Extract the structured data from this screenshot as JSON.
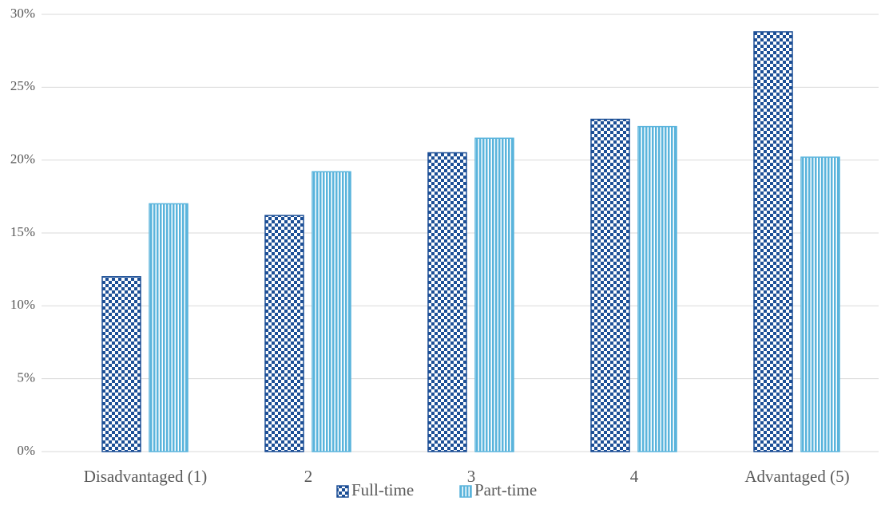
{
  "chart_data": {
    "type": "bar",
    "categories": [
      "Disadvantaged (1)",
      "2",
      "3",
      "4",
      "Advantaged (5)"
    ],
    "series": [
      {
        "name": "Full-time",
        "color": "#1c4f96",
        "values": [
          12.0,
          16.2,
          20.5,
          22.8,
          28.8
        ]
      },
      {
        "name": "Part-time",
        "color": "#5ab4dc",
        "values": [
          17.0,
          19.2,
          21.5,
          22.3,
          20.2
        ]
      }
    ],
    "ylim": [
      0,
      30
    ],
    "yticks": [
      {
        "value": 0,
        "label": "0%"
      },
      {
        "value": 5,
        "label": "5%"
      },
      {
        "value": 10,
        "label": "10%"
      },
      {
        "value": 15,
        "label": "15%"
      },
      {
        "value": 20,
        "label": "20%"
      },
      {
        "value": 25,
        "label": "25%"
      },
      {
        "value": 30,
        "label": "30%"
      }
    ],
    "grid": true,
    "legend": "bottom"
  }
}
